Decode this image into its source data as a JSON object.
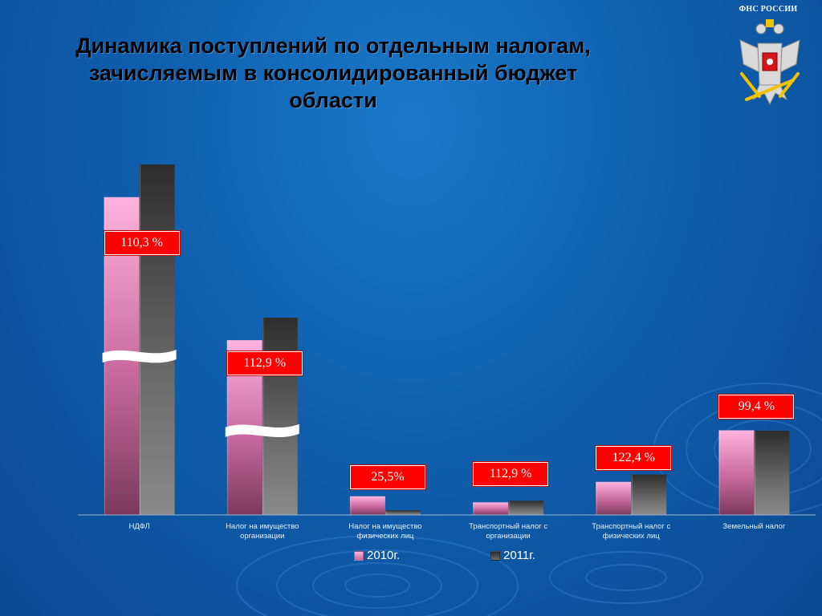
{
  "header": {
    "brand": "ФНС РОССИИ",
    "emblem_icon": "double-headed-eagle-emblem-icon"
  },
  "colors": {
    "background": "#0f5fae",
    "series_2010": "#f7a8d4",
    "series_2011": "#3a3a3a",
    "badge": "#ff0000"
  },
  "chart_data": {
    "type": "bar",
    "title": "Динамика поступлений по  отдельным налогам, зачисляемым в консолидированный бюджет области",
    "categories": [
      "НДФЛ",
      "Налог на имущество организации",
      "Налог на имущество физических лиц",
      "Транспортный налог с организации",
      "Транспортный налог с физических лиц",
      "Земельный налог"
    ],
    "category_lines": [
      [
        "НДФЛ"
      ],
      [
        "Налог на имущество",
        "организации"
      ],
      [
        "Налог на имущество",
        "физических лиц"
      ],
      [
        "Транспортный налог с",
        "организации"
      ],
      [
        "Транспортный налог с",
        "физических лиц"
      ],
      [
        "Земельный налог"
      ]
    ],
    "series": [
      {
        "name": "2010г.",
        "values": [
          100,
          100,
          9.2,
          6.2,
          16.3,
          41.7
        ]
      },
      {
        "name": "2011г.",
        "values": [
          110.3,
          112.9,
          2.3,
          7.0,
          19.9,
          41.5
        ]
      }
    ],
    "growth_labels": [
      "110,3 %",
      "112,9 %",
      "25,5%",
      "112,9 %",
      "122,4 %",
      "99,4 %"
    ],
    "axis_breaks": [
      0,
      1
    ],
    "legend_position": "bottom",
    "grid": false
  }
}
